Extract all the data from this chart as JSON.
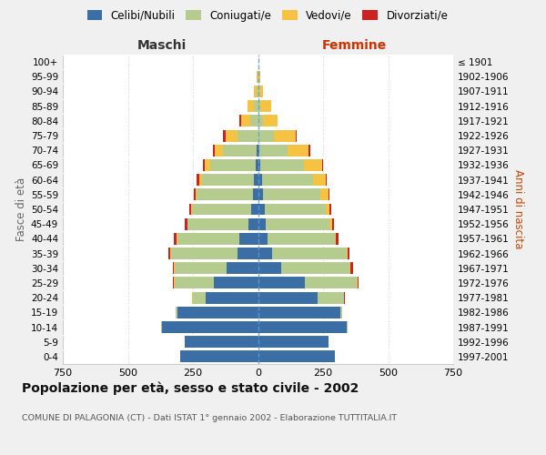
{
  "age_groups": [
    "0-4",
    "5-9",
    "10-14",
    "15-19",
    "20-24",
    "25-29",
    "30-34",
    "35-39",
    "40-44",
    "45-49",
    "50-54",
    "55-59",
    "60-64",
    "65-69",
    "70-74",
    "75-79",
    "80-84",
    "85-89",
    "90-94",
    "95-99",
    "100+"
  ],
  "birth_years": [
    "1997-2001",
    "1992-1996",
    "1987-1991",
    "1982-1986",
    "1977-1981",
    "1972-1976",
    "1967-1971",
    "1962-1966",
    "1957-1961",
    "1952-1956",
    "1947-1951",
    "1942-1946",
    "1937-1941",
    "1932-1936",
    "1927-1931",
    "1922-1926",
    "1917-1921",
    "1912-1916",
    "1907-1911",
    "1902-1906",
    "≤ 1901"
  ],
  "males_celibi": [
    300,
    280,
    370,
    310,
    200,
    170,
    120,
    80,
    70,
    35,
    25,
    20,
    15,
    10,
    5,
    0,
    0,
    0,
    0,
    0,
    0
  ],
  "males_coniugati": [
    0,
    0,
    2,
    5,
    50,
    150,
    200,
    255,
    240,
    235,
    230,
    215,
    200,
    175,
    130,
    80,
    30,
    15,
    5,
    3,
    0
  ],
  "males_vedovi": [
    0,
    0,
    0,
    0,
    2,
    2,
    2,
    2,
    2,
    2,
    3,
    5,
    10,
    20,
    30,
    45,
    35,
    25,
    10,
    3,
    0
  ],
  "males_divorziati": [
    0,
    0,
    0,
    0,
    2,
    5,
    5,
    8,
    12,
    8,
    5,
    8,
    10,
    8,
    8,
    8,
    5,
    0,
    0,
    0,
    0
  ],
  "females_nubili": [
    295,
    270,
    340,
    315,
    230,
    180,
    90,
    55,
    35,
    30,
    25,
    20,
    15,
    10,
    5,
    0,
    0,
    0,
    0,
    0,
    0
  ],
  "females_coniugate": [
    0,
    0,
    5,
    10,
    100,
    200,
    260,
    285,
    260,
    245,
    235,
    220,
    195,
    165,
    110,
    60,
    20,
    10,
    5,
    3,
    0
  ],
  "females_vedove": [
    0,
    0,
    0,
    0,
    2,
    2,
    5,
    5,
    5,
    10,
    15,
    30,
    50,
    70,
    80,
    85,
    55,
    40,
    15,
    5,
    0
  ],
  "females_divorziate": [
    0,
    0,
    0,
    0,
    2,
    5,
    12,
    8,
    8,
    8,
    8,
    5,
    5,
    5,
    5,
    5,
    0,
    0,
    0,
    0,
    0
  ],
  "colors_celibi": "#3a6ea5",
  "colors_coniugati": "#b5cc8e",
  "colors_vedovi": "#f5c242",
  "colors_divorziati": "#cc2222",
  "xlim": 750,
  "title": "Popolazione per età, sesso e stato civile - 2002",
  "subtitle": "COMUNE DI PALAGONIA (CT) - Dati ISTAT 1° gennaio 2002 - Elaborazione TUTTITALIA.IT",
  "ylabel_left": "Fasce di età",
  "ylabel_right": "Anni di nascita",
  "label_maschi": "Maschi",
  "label_femmine": "Femmine",
  "legend_labels": [
    "Celibi/Nubili",
    "Coniugati/e",
    "Vedovi/e",
    "Divorziati/e"
  ],
  "bg_color": "#f0f0f0",
  "plot_bg_color": "#ffffff"
}
